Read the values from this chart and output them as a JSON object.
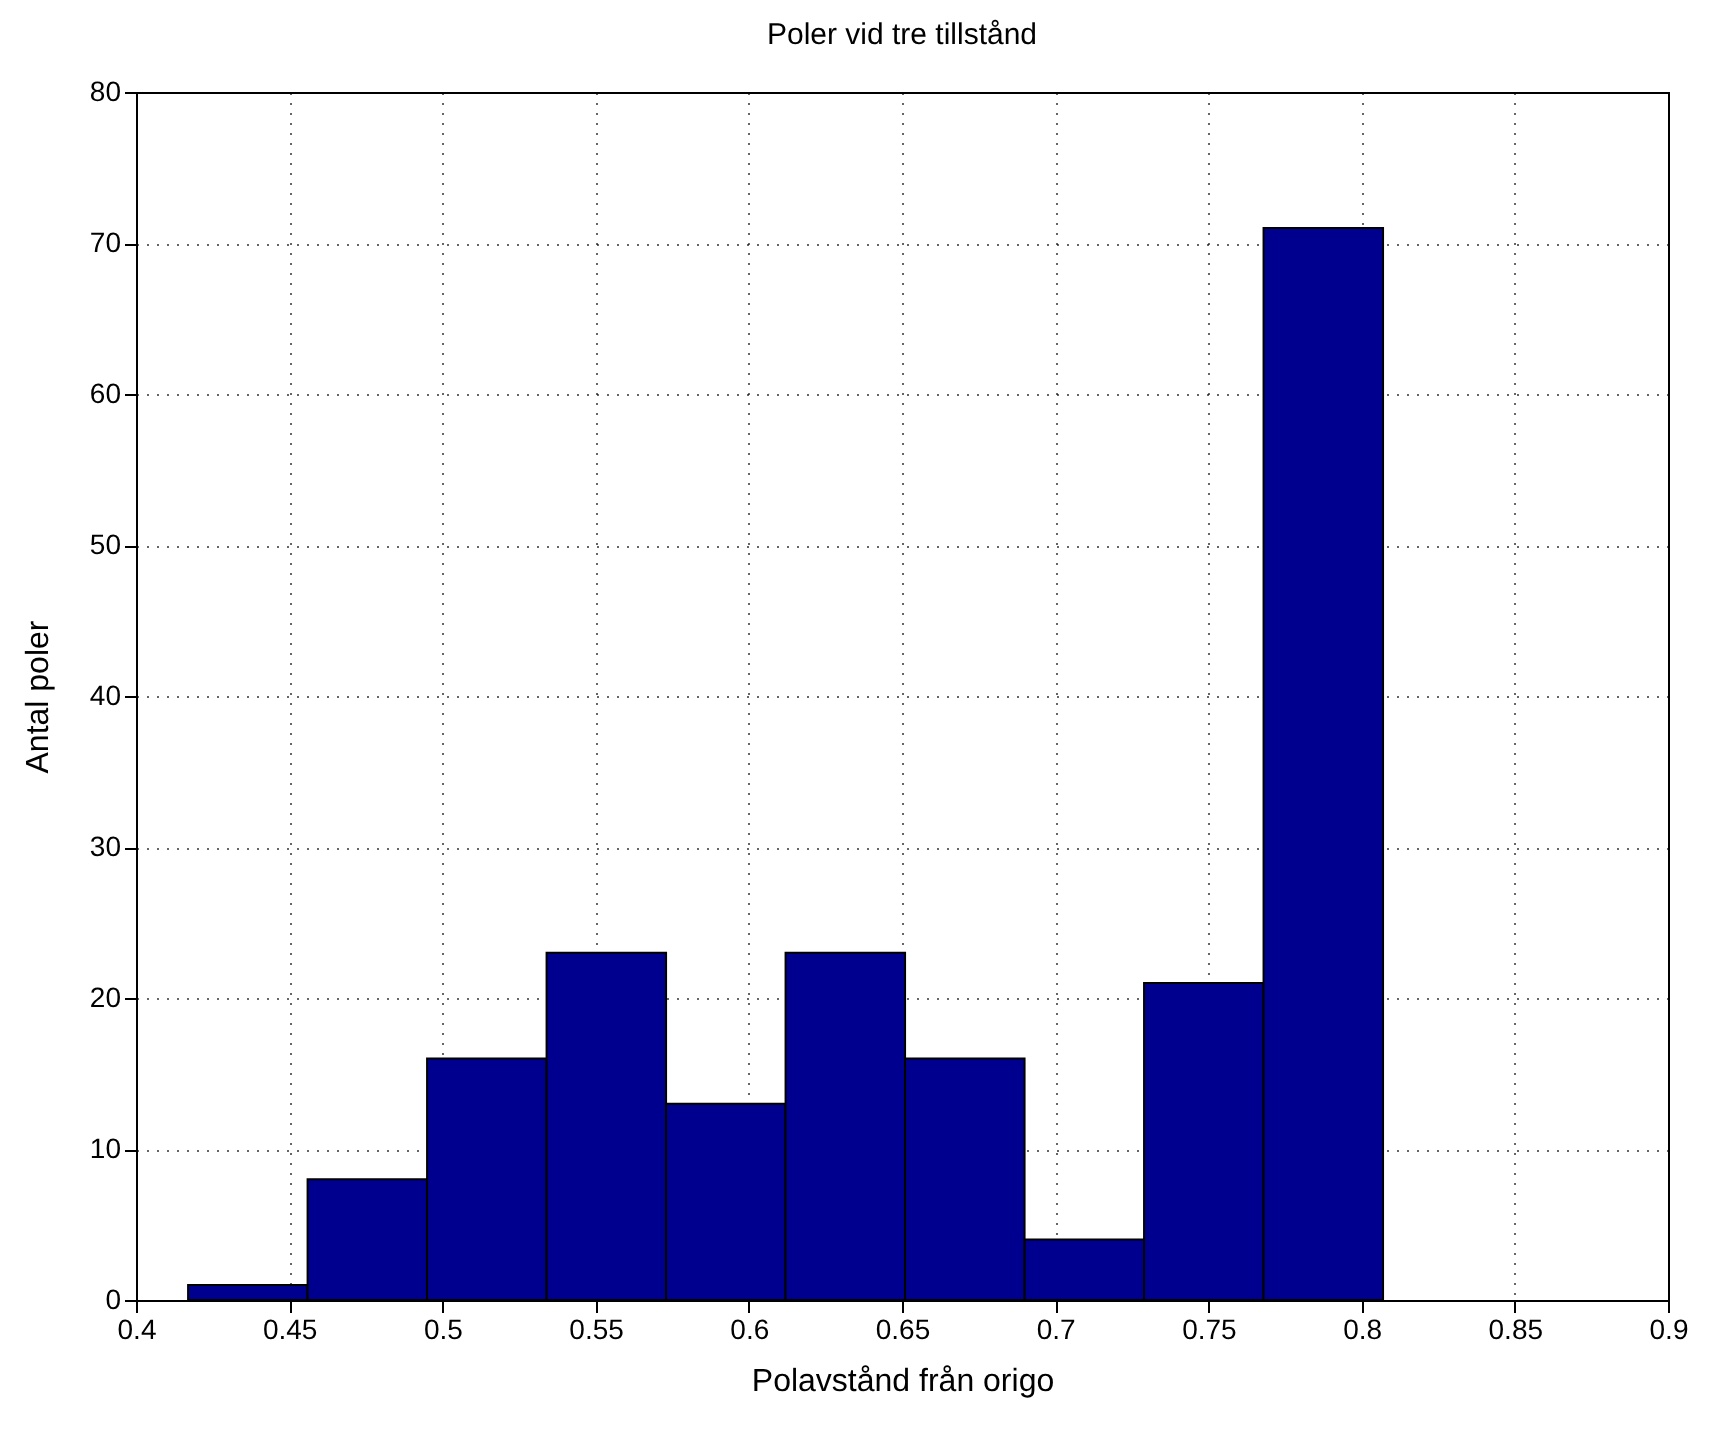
{
  "chart_data": {
    "type": "histogram",
    "title": "Poler vid tre tillstånd",
    "xlabel": "Polavstånd från origo",
    "ylabel": "Antal poler",
    "bins": [
      0.417,
      0.456,
      0.495,
      0.534,
      0.573,
      0.612,
      0.651,
      0.69,
      0.729,
      0.768,
      0.807
    ],
    "values": [
      1,
      8,
      16,
      23,
      13,
      23,
      16,
      4,
      21,
      71
    ],
    "color": "#00008f",
    "xlim": [
      0.4,
      0.9
    ],
    "xticks": [
      0.4,
      0.45,
      0.5,
      0.55,
      0.6,
      0.65,
      0.7,
      0.75,
      0.8,
      0.85,
      0.9
    ],
    "ylim": [
      0,
      80
    ],
    "yticks": [
      0,
      10,
      20,
      30,
      40,
      50,
      60,
      70,
      80
    ],
    "grid": true
  }
}
